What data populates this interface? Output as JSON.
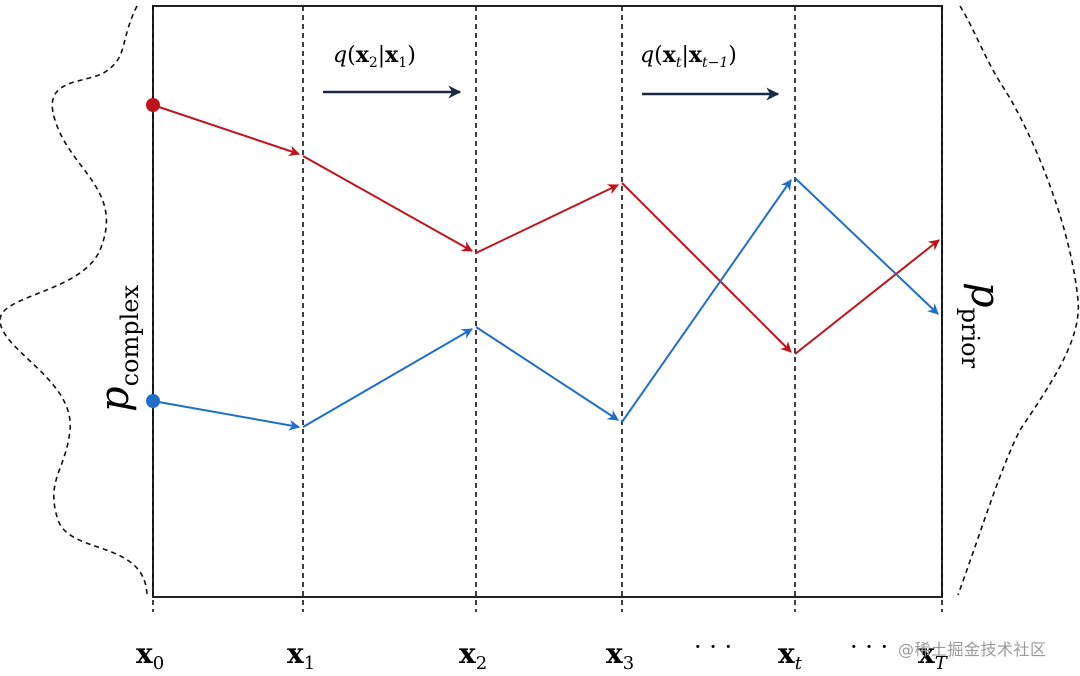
{
  "x_labels": [
    {
      "base": "x",
      "sub": "0"
    },
    {
      "base": "x",
      "sub": "1"
    },
    {
      "base": "x",
      "sub": "2"
    },
    {
      "base": "x",
      "sub": "3"
    },
    {
      "base": "x",
      "sub": "t"
    },
    {
      "base": "x",
      "sub": "T"
    }
  ],
  "ellipsis": "· · ·",
  "transition_1": {
    "func": "q",
    "target": "x",
    "target_sub": "2",
    "cond": "x",
    "cond_sub": "1"
  },
  "transition_2": {
    "func": "q",
    "target": "x",
    "target_sub": "t",
    "cond": "x",
    "cond_sub": "t−1"
  },
  "left_distribution": {
    "base": "p",
    "sub": "complex"
  },
  "right_distribution": {
    "base": "p",
    "sub": "prior"
  },
  "colors": {
    "red_path": "#c0141c",
    "blue_path": "#1f6fc8",
    "arrow": "#1a2a45",
    "frame": "#222222"
  },
  "watermark": "@稀土掘金技术社区"
}
